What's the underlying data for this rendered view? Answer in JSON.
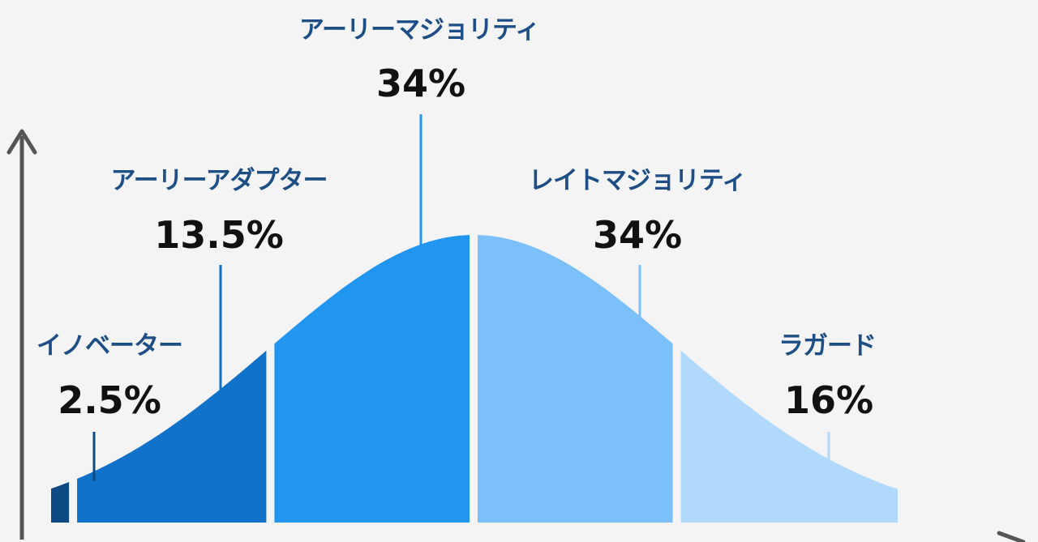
{
  "chart_data": {
    "type": "area",
    "segments": [
      {
        "name": "イノベーター",
        "value_label": "2.5%",
        "value": 2.5,
        "color": "#0d4a84"
      },
      {
        "name": "アーリーアダプター",
        "value_label": "13.5%",
        "value": 13.5,
        "color": "#1072c8"
      },
      {
        "name": "アーリーマジョリティ",
        "value_label": "34%",
        "value": 34,
        "color": "#2196f0"
      },
      {
        "name": "レイトマジョリティ",
        "value_label": "34%",
        "value": 34,
        "color": "#7cc0fa"
      },
      {
        "name": "ラガード",
        "value_label": "16%",
        "value": 16,
        "color": "#b0d9fc"
      }
    ],
    "label_color": "#1d4f86",
    "value_color": "#111111",
    "axis_color": "#555555",
    "grid": false,
    "legend": "none"
  }
}
